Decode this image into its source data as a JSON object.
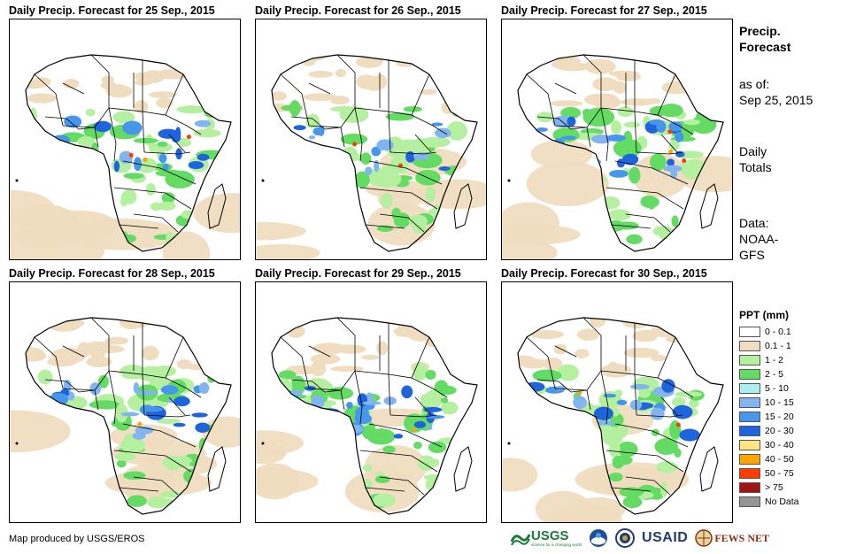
{
  "panels": [
    {
      "title": "Daily Precip. Forecast for 25  Sep., 2015"
    },
    {
      "title": "Daily Precip. Forecast for 26  Sep., 2015"
    },
    {
      "title": "Daily Precip. Forecast for 27  Sep., 2015"
    },
    {
      "title": "Daily Precip. Forecast for 28  Sep., 2015"
    },
    {
      "title": "Daily Precip. Forecast for 29  Sep., 2015"
    },
    {
      "title": "Daily Precip. Forecast for 30  Sep., 2015"
    }
  ],
  "sidebar": {
    "title_line1": "Precip.",
    "title_line2": "Forecast",
    "asof_line1": "as of:",
    "asof_line2": "Sep 25, 2015",
    "totals_line1": "Daily",
    "totals_line2": "Totals",
    "data_line1": "Data:",
    "data_line2": "NOAA-",
    "data_line3": "GFS"
  },
  "legend": {
    "title": "PPT (mm)",
    "items": [
      {
        "label": "0 - 0.1",
        "color": "#ffffff"
      },
      {
        "label": "0.1 - 1",
        "color": "#f0dcbe"
      },
      {
        "label": "1 - 2",
        "color": "#b4f0a0"
      },
      {
        "label": "2 - 5",
        "color": "#64dc64"
      },
      {
        "label": "5 - 10",
        "color": "#aaf0f0"
      },
      {
        "label": "10 - 15",
        "color": "#82b4f0"
      },
      {
        "label": "15 - 20",
        "color": "#4696eb"
      },
      {
        "label": "20 - 30",
        "color": "#1e64dc"
      },
      {
        "label": "30 - 40",
        "color": "#ffe682"
      },
      {
        "label": "40 - 50",
        "color": "#ffa500"
      },
      {
        "label": "50 - 75",
        "color": "#ff3c00"
      },
      {
        "label": "> 75",
        "color": "#a01414"
      },
      {
        "label": "No Data",
        "color": "#969696"
      }
    ]
  },
  "credit": "Map produced by USGS/EROS",
  "logos": {
    "usgs": "USGS",
    "usgs_tagline": "science for a changing world",
    "usaid": "USAID",
    "fewsnet": "FEWS NET"
  }
}
